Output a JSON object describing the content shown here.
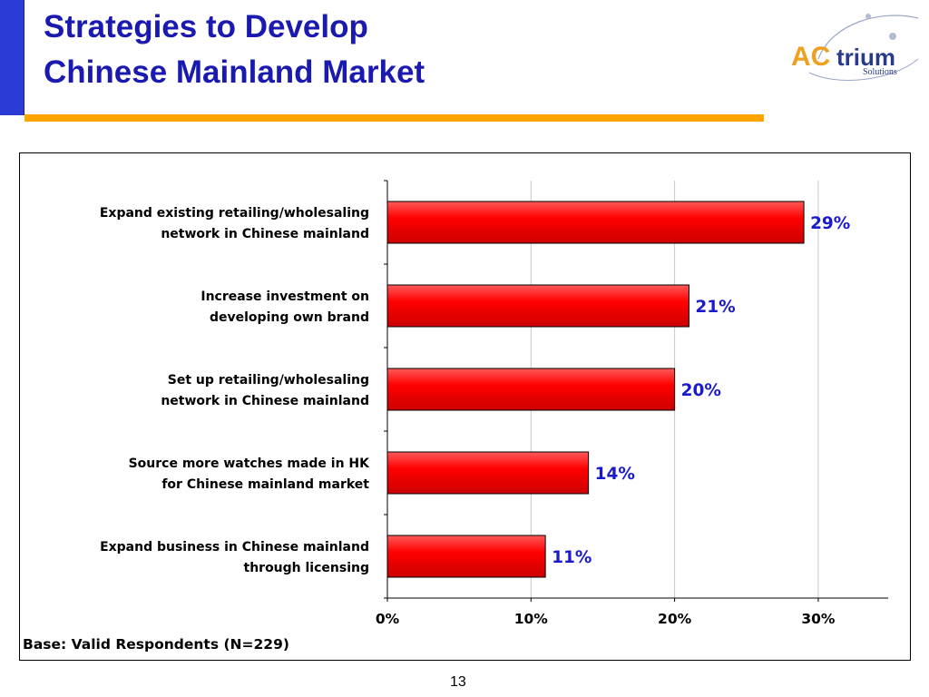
{
  "slide": {
    "title_line1": "Strategies to Develop",
    "title_line2": "Chinese Mainland Market",
    "footnote": "Base: Valid Respondents (N=229)",
    "page_number": "13"
  },
  "logo": {
    "text_ac": "AC",
    "text_trium": "trium",
    "text_solutions": "Solutions"
  },
  "colors": {
    "title": "#1a1ab0",
    "accent_bar": "#2a3bd6",
    "rule": "#ffa500",
    "bar_fill": "#ff0000",
    "value_label": "#1a1acc"
  },
  "chart_data": {
    "type": "bar",
    "orientation": "horizontal",
    "categories": [
      [
        "Expand existing retailing/wholesaling",
        "network in Chinese mainland"
      ],
      [
        "Increase investment on",
        "developing own brand"
      ],
      [
        "Set up retailing/wholesaling",
        "network in Chinese mainland"
      ],
      [
        "Source more watches made in HK",
        "for Chinese mainland market"
      ],
      [
        "Expand business in Chinese mainland",
        "through licensing"
      ]
    ],
    "values": [
      29,
      21,
      20,
      14,
      11
    ],
    "value_labels": [
      "29%",
      "21%",
      "20%",
      "14%",
      "11%"
    ],
    "xticks": [
      "0%",
      "10%",
      "20%",
      "30%"
    ],
    "xlim": [
      0,
      35
    ],
    "grid": true
  }
}
